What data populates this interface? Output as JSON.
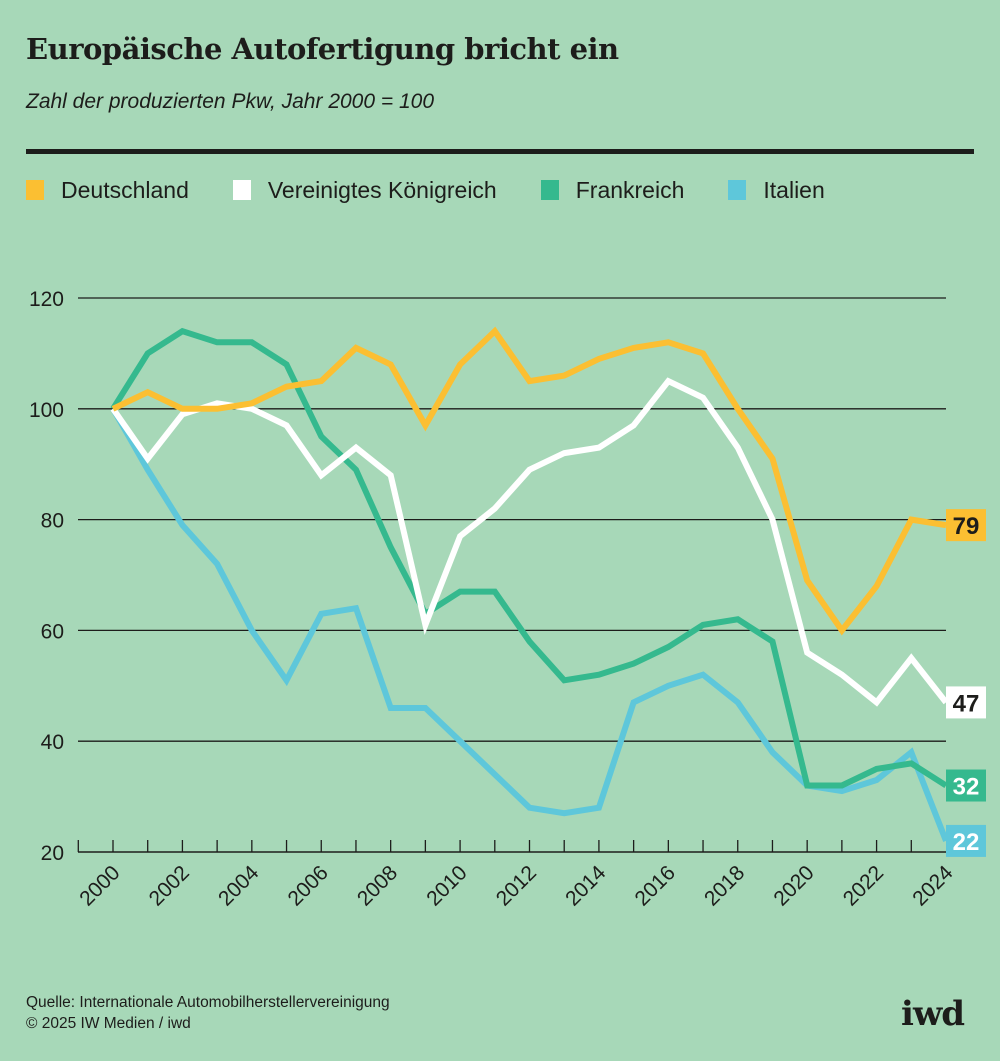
{
  "header": {
    "title": "Europäische Autofertigung bricht ein",
    "subtitle": "Zahl der produzierten Pkw, Jahr 2000 = 100"
  },
  "legend": [
    {
      "label": "Deutschland",
      "color": "#fbbf32"
    },
    {
      "label": "Vereinigtes Königreich",
      "color": "#ffffff"
    },
    {
      "label": "Frankreich",
      "color": "#35b98e"
    },
    {
      "label": "Italien",
      "color": "#5ec7da"
    }
  ],
  "footer": {
    "source": "Quelle: Internationale Automobilherstellervereinigung",
    "copyright": "© 2025 IW Medien / iwd",
    "logo": "iwd"
  },
  "chart_data": {
    "type": "line",
    "title": "Europäische Autofertigung bricht ein",
    "subtitle": "Zahl der produzierten Pkw, Jahr 2000 = 100",
    "xlabel": "",
    "ylabel": "",
    "x": [
      2000,
      2001,
      2002,
      2003,
      2004,
      2005,
      2006,
      2007,
      2008,
      2009,
      2010,
      2011,
      2012,
      2013,
      2014,
      2015,
      2016,
      2017,
      2018,
      2019,
      2020,
      2021,
      2022,
      2023,
      2024
    ],
    "x_tick_labels": [
      "2000",
      "2002",
      "2004",
      "2006",
      "2008",
      "2010",
      "2012",
      "2014",
      "2016",
      "2018",
      "2020",
      "2022",
      "2024"
    ],
    "ylim": [
      20,
      120
    ],
    "y_ticks": [
      20,
      40,
      60,
      80,
      100,
      120
    ],
    "grid": true,
    "legend_position": "top",
    "series": [
      {
        "name": "Deutschland",
        "color": "#fbbf32",
        "label_text_color": "#1d1d1b",
        "end_label": "79",
        "values": [
          100,
          103,
          100,
          100,
          101,
          104,
          105,
          111,
          108,
          97,
          108,
          114,
          105,
          106,
          109,
          111,
          112,
          110,
          100,
          91,
          69,
          60,
          68,
          80,
          79
        ]
      },
      {
        "name": "Vereinigtes Königreich",
        "color": "#ffffff",
        "label_text_color": "#1d1d1b",
        "end_label": "47",
        "values": [
          100,
          91,
          99,
          101,
          100,
          97,
          88,
          93,
          88,
          61,
          77,
          82,
          89,
          92,
          93,
          97,
          105,
          102,
          93,
          80,
          56,
          52,
          47,
          55,
          47
        ]
      },
      {
        "name": "Frankreich",
        "color": "#35b98e",
        "label_text_color": "#ffffff",
        "end_label": "32",
        "values": [
          100,
          110,
          114,
          112,
          112,
          108,
          95,
          89,
          75,
          63,
          67,
          67,
          58,
          51,
          52,
          54,
          57,
          61,
          62,
          58,
          32,
          32,
          35,
          36,
          32
        ]
      },
      {
        "name": "Italien",
        "color": "#5ec7da",
        "label_text_color": "#ffffff",
        "end_label": "22",
        "values": [
          100,
          89,
          79,
          72,
          60,
          51,
          63,
          64,
          46,
          46,
          40,
          34,
          28,
          27,
          28,
          47,
          50,
          52,
          47,
          38,
          32,
          31,
          33,
          38,
          22
        ]
      }
    ]
  }
}
